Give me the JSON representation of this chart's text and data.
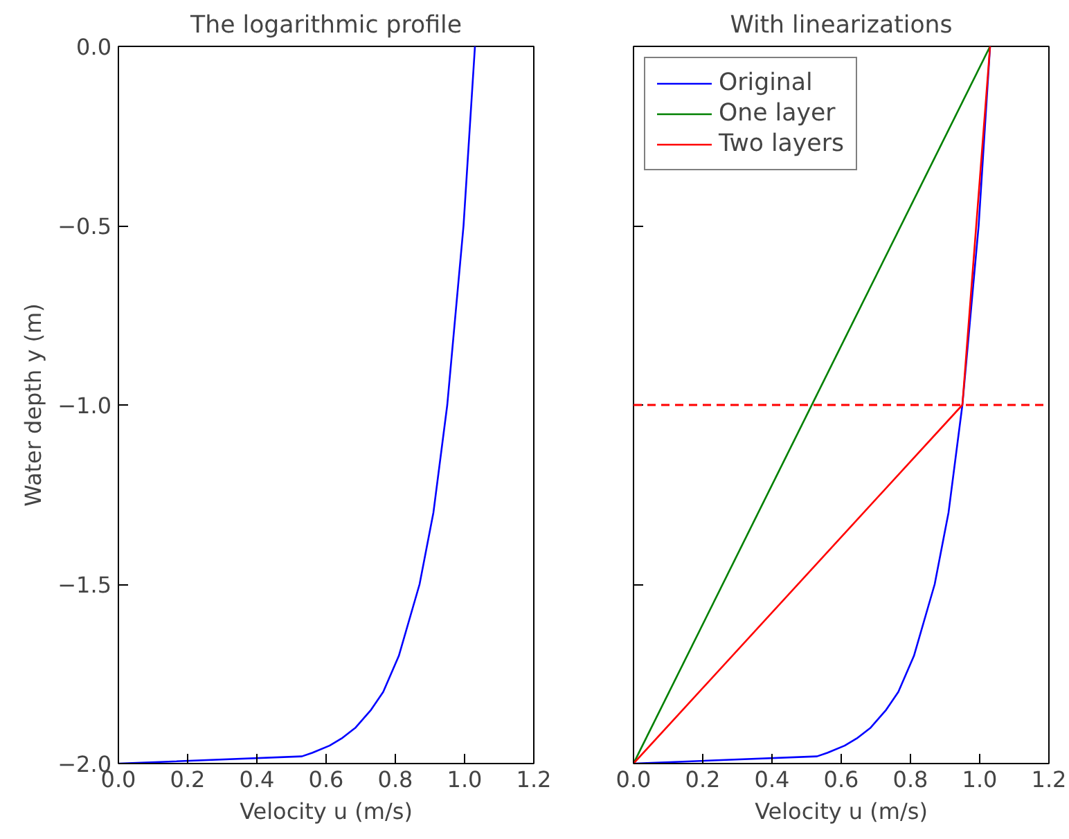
{
  "chart_data": [
    {
      "type": "line",
      "title": "The logarithmic profile",
      "xlabel": "Velocity u (m/s)",
      "ylabel": "Water depth y (m)",
      "xlim": [
        0,
        1.2
      ],
      "ylim": [
        -2,
        0
      ],
      "xticks": [
        {
          "value": 0,
          "label": "0.0"
        },
        {
          "value": 0.2,
          "label": "0.2"
        },
        {
          "value": 0.4,
          "label": "0.4"
        },
        {
          "value": 0.6,
          "label": "0.6"
        },
        {
          "value": 0.8,
          "label": "0.8"
        },
        {
          "value": 1.0,
          "label": "1.0"
        },
        {
          "value": 1.2,
          "label": "1.2"
        }
      ],
      "yticks": [
        {
          "value": -2,
          "label": "−2.0"
        },
        {
          "value": -1.5,
          "label": "−1.5"
        },
        {
          "value": -1,
          "label": "−1.0"
        },
        {
          "value": -0.5,
          "label": "−0.5"
        },
        {
          "value": 0,
          "label": "0.0"
        }
      ],
      "grid": false,
      "series": [
        {
          "color": "#0000ff",
          "x": [
            0,
            0.53,
            0.56,
            0.61,
            0.645,
            0.685,
            0.73,
            0.765,
            0.81,
            0.87,
            0.91,
            0.95,
            0.997,
            1.03
          ],
          "values": [
            -2,
            -1.98,
            -1.97,
            -1.95,
            -1.93,
            -1.9,
            -1.85,
            -1.8,
            -1.7,
            -1.5,
            -1.3,
            -1.0,
            -0.5,
            0
          ]
        }
      ]
    },
    {
      "type": "line",
      "title": "With linearizations",
      "xlabel": "Velocity u (m/s)",
      "xlim": [
        0,
        1.2
      ],
      "ylim": [
        -2,
        0
      ],
      "xticks": [
        {
          "value": 0,
          "label": "0.0"
        },
        {
          "value": 0.2,
          "label": "0.2"
        },
        {
          "value": 0.4,
          "label": "0.4"
        },
        {
          "value": 0.6,
          "label": "0.6"
        },
        {
          "value": 0.8,
          "label": "0.8"
        },
        {
          "value": 1.0,
          "label": "1.0"
        },
        {
          "value": 1.2,
          "label": "1.2"
        }
      ],
      "yticks": [
        -2,
        -1.5,
        -1,
        -0.5,
        0
      ],
      "tick_labels": "x",
      "grid": false,
      "legend": "top left",
      "ref_lines": [
        {
          "axis": "y",
          "value": -1,
          "color": "#ff0000",
          "line_style": "dashed"
        }
      ],
      "series": [
        {
          "name": "Original",
          "color": "#0000ff",
          "x": [
            0,
            0.53,
            0.56,
            0.61,
            0.645,
            0.685,
            0.73,
            0.765,
            0.81,
            0.87,
            0.91,
            0.95,
            0.997,
            1.03
          ],
          "values": [
            -2,
            -1.98,
            -1.97,
            -1.95,
            -1.93,
            -1.9,
            -1.85,
            -1.8,
            -1.7,
            -1.5,
            -1.3,
            -1.0,
            -0.5,
            0
          ]
        },
        {
          "name": "One layer",
          "color": "#008000",
          "x": [
            0,
            1.03
          ],
          "values": [
            -2,
            0
          ]
        },
        {
          "name": "Two layers",
          "color": "#ff0000",
          "x": [
            0,
            0.95,
            1.03
          ],
          "values": [
            -2,
            -1,
            0
          ]
        }
      ]
    }
  ]
}
